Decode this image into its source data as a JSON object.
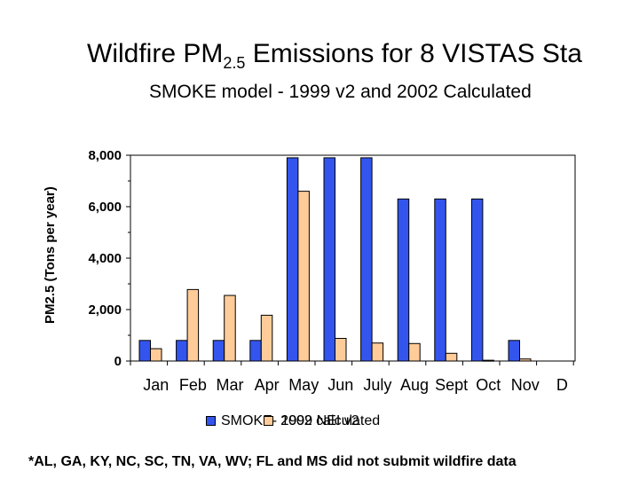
{
  "chart_data": {
    "type": "bar",
    "title_main": "Wildfire PM",
    "title_sub": "2.5",
    "title_rest": " Emissions for 8 VISTAS Sta",
    "subtitle": "SMOKE model - 1999 v2 and 2002 Calculated",
    "ylabel": "PM2.5 (Tons per year)",
    "categories": [
      "Jan",
      "Feb",
      "Mar",
      "Apr",
      "May",
      "Jun",
      "July",
      "Aug",
      "Sept",
      "Oct",
      "Nov",
      "D"
    ],
    "yticks": [
      "0",
      "2,000",
      "4,000",
      "6,000",
      "8,000"
    ],
    "ylim": [
      0,
      8000
    ],
    "series": [
      {
        "name": "SMOKE- 1999 NEI v2",
        "color": "#3355ee",
        "values": [
          800,
          800,
          800,
          800,
          7900,
          7900,
          7900,
          6300,
          6300,
          6300,
          800,
          null
        ]
      },
      {
        "name": "2002 calculated",
        "color": "#ffcc99",
        "values": [
          480,
          2780,
          2550,
          1780,
          6600,
          880,
          700,
          680,
          300,
          30,
          80,
          null
        ]
      }
    ]
  },
  "legend": {
    "item1": "SMOKE- 1999 NEI v2",
    "item2": "2002 calculated"
  },
  "footnote": "*AL, GA, KY, NC, SC, TN, VA, WV; FL and MS did not submit wildfire data"
}
